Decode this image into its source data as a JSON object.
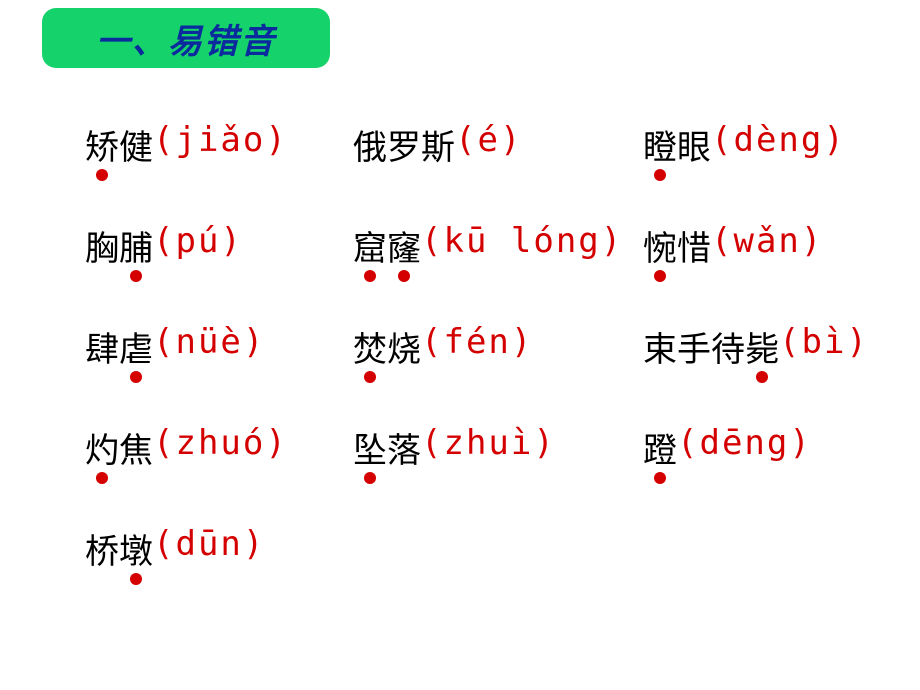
{
  "colors": {
    "header_bg": "#16d26a",
    "header_text": "#0a2a9e",
    "hanzi": "#000000",
    "pinyin": "#d40000",
    "dot": "#d40000"
  },
  "header": {
    "title": "一、易错音"
  },
  "rows": [
    [
      {
        "hanzi": "矫健",
        "pinyin": "(jiǎo)",
        "dots": [
          0
        ]
      },
      {
        "hanzi": "俄罗斯",
        "pinyin": "(é)",
        "dots": []
      },
      {
        "hanzi": "瞪眼",
        "pinyin": "(dèng)",
        "dots": [
          0
        ]
      }
    ],
    [
      {
        "hanzi": "胸脯",
        "pinyin": "(pú)",
        "dots": [
          1
        ]
      },
      {
        "hanzi": "窟窿",
        "pinyin": "(kū lóng)",
        "dots": [
          0,
          1
        ]
      },
      {
        "hanzi": "惋惜",
        "pinyin": "(wǎn)",
        "dots": [
          0
        ]
      }
    ],
    [
      {
        "hanzi": "肆虐",
        "pinyin": "(nüè)",
        "dots": [
          1
        ]
      },
      {
        "hanzi": "焚烧",
        "pinyin": "(fén)",
        "dots": [
          0
        ]
      },
      {
        "hanzi": "束手待毙",
        "pinyin": "(bì)",
        "dots": [
          3
        ]
      }
    ],
    [
      {
        "hanzi": "灼焦",
        "pinyin": "(zhuó)",
        "dots": [
          0
        ]
      },
      {
        "hanzi": "坠落",
        "pinyin": "(zhuì)",
        "dots": [
          0
        ]
      },
      {
        "hanzi": "蹬",
        "pinyin": "(dēng)",
        "dots": [
          0
        ]
      }
    ],
    [
      {
        "hanzi": "桥墩",
        "pinyin": "(dūn)",
        "dots": [
          1
        ]
      }
    ]
  ]
}
